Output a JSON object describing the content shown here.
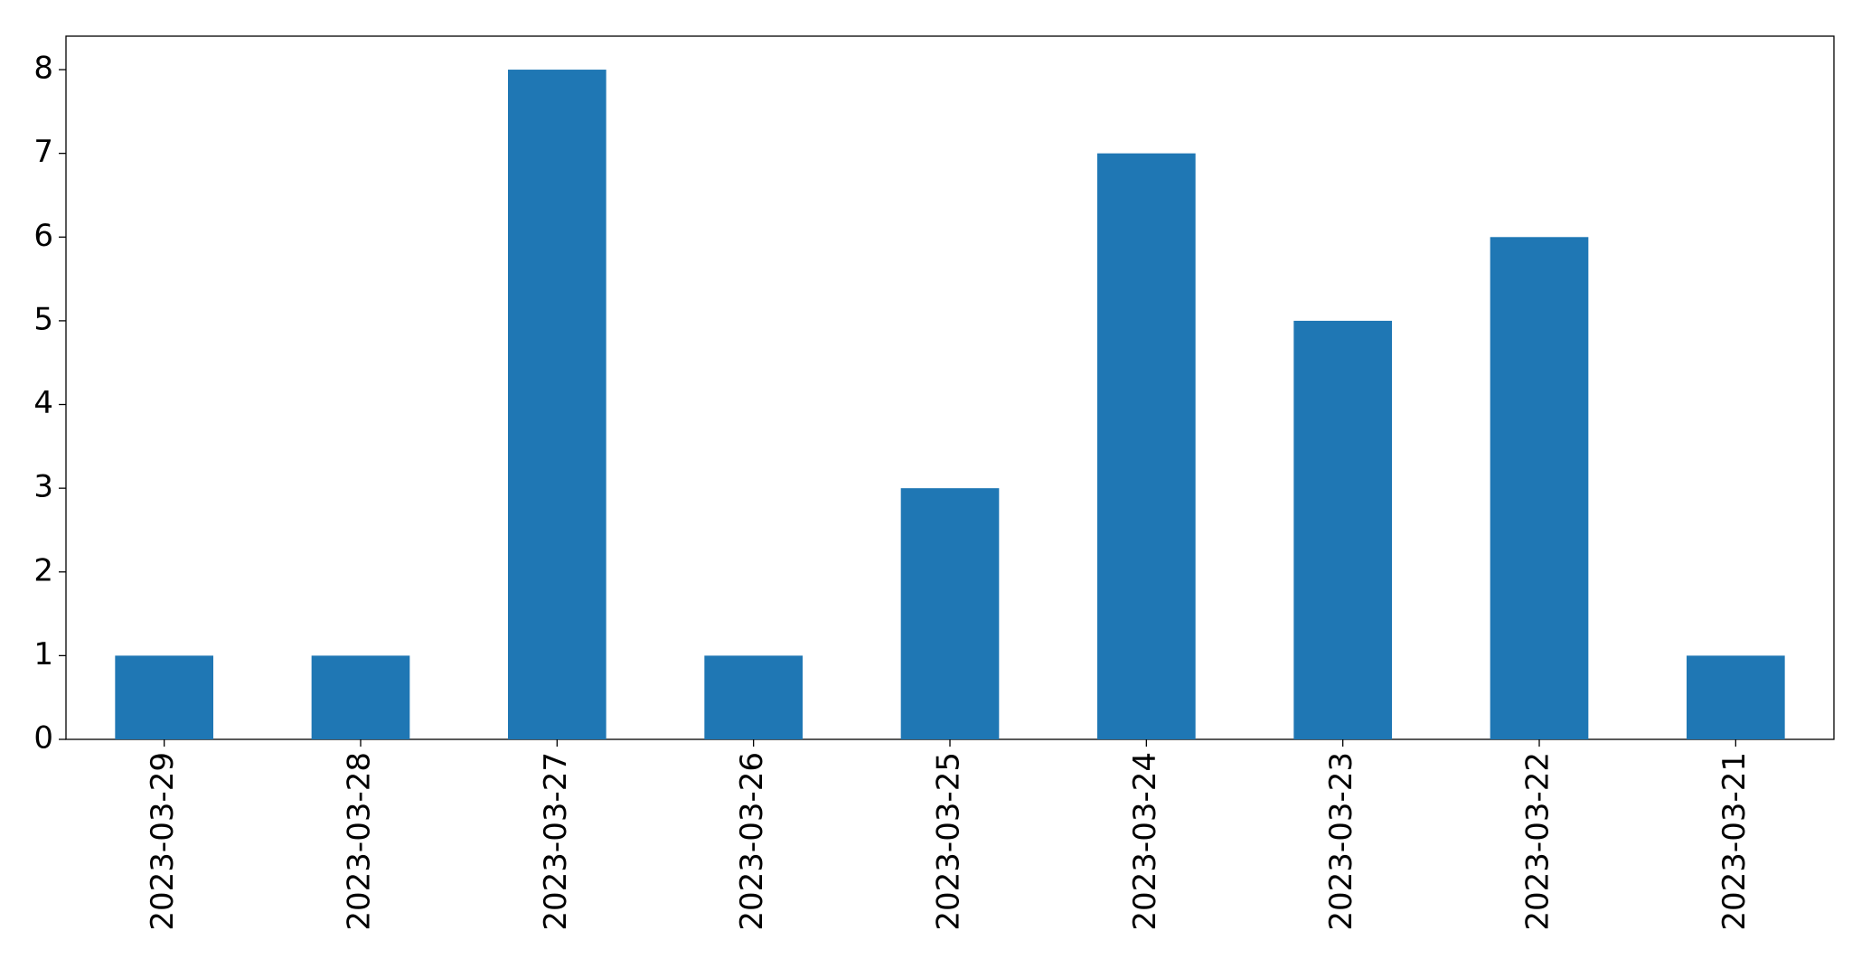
{
  "chart_data": {
    "type": "bar",
    "categories": [
      "2023-03-29",
      "2023-03-28",
      "2023-03-27",
      "2023-03-26",
      "2023-03-25",
      "2023-03-24",
      "2023-03-23",
      "2023-03-22",
      "2023-03-21"
    ],
    "values": [
      1,
      1,
      8,
      1,
      3,
      7,
      5,
      6,
      1
    ],
    "color": "#1f77b4",
    "ylim": [
      0,
      8.4
    ],
    "yticks": [
      0,
      1,
      2,
      3,
      4,
      5,
      6,
      7,
      8
    ],
    "grid": false
  }
}
